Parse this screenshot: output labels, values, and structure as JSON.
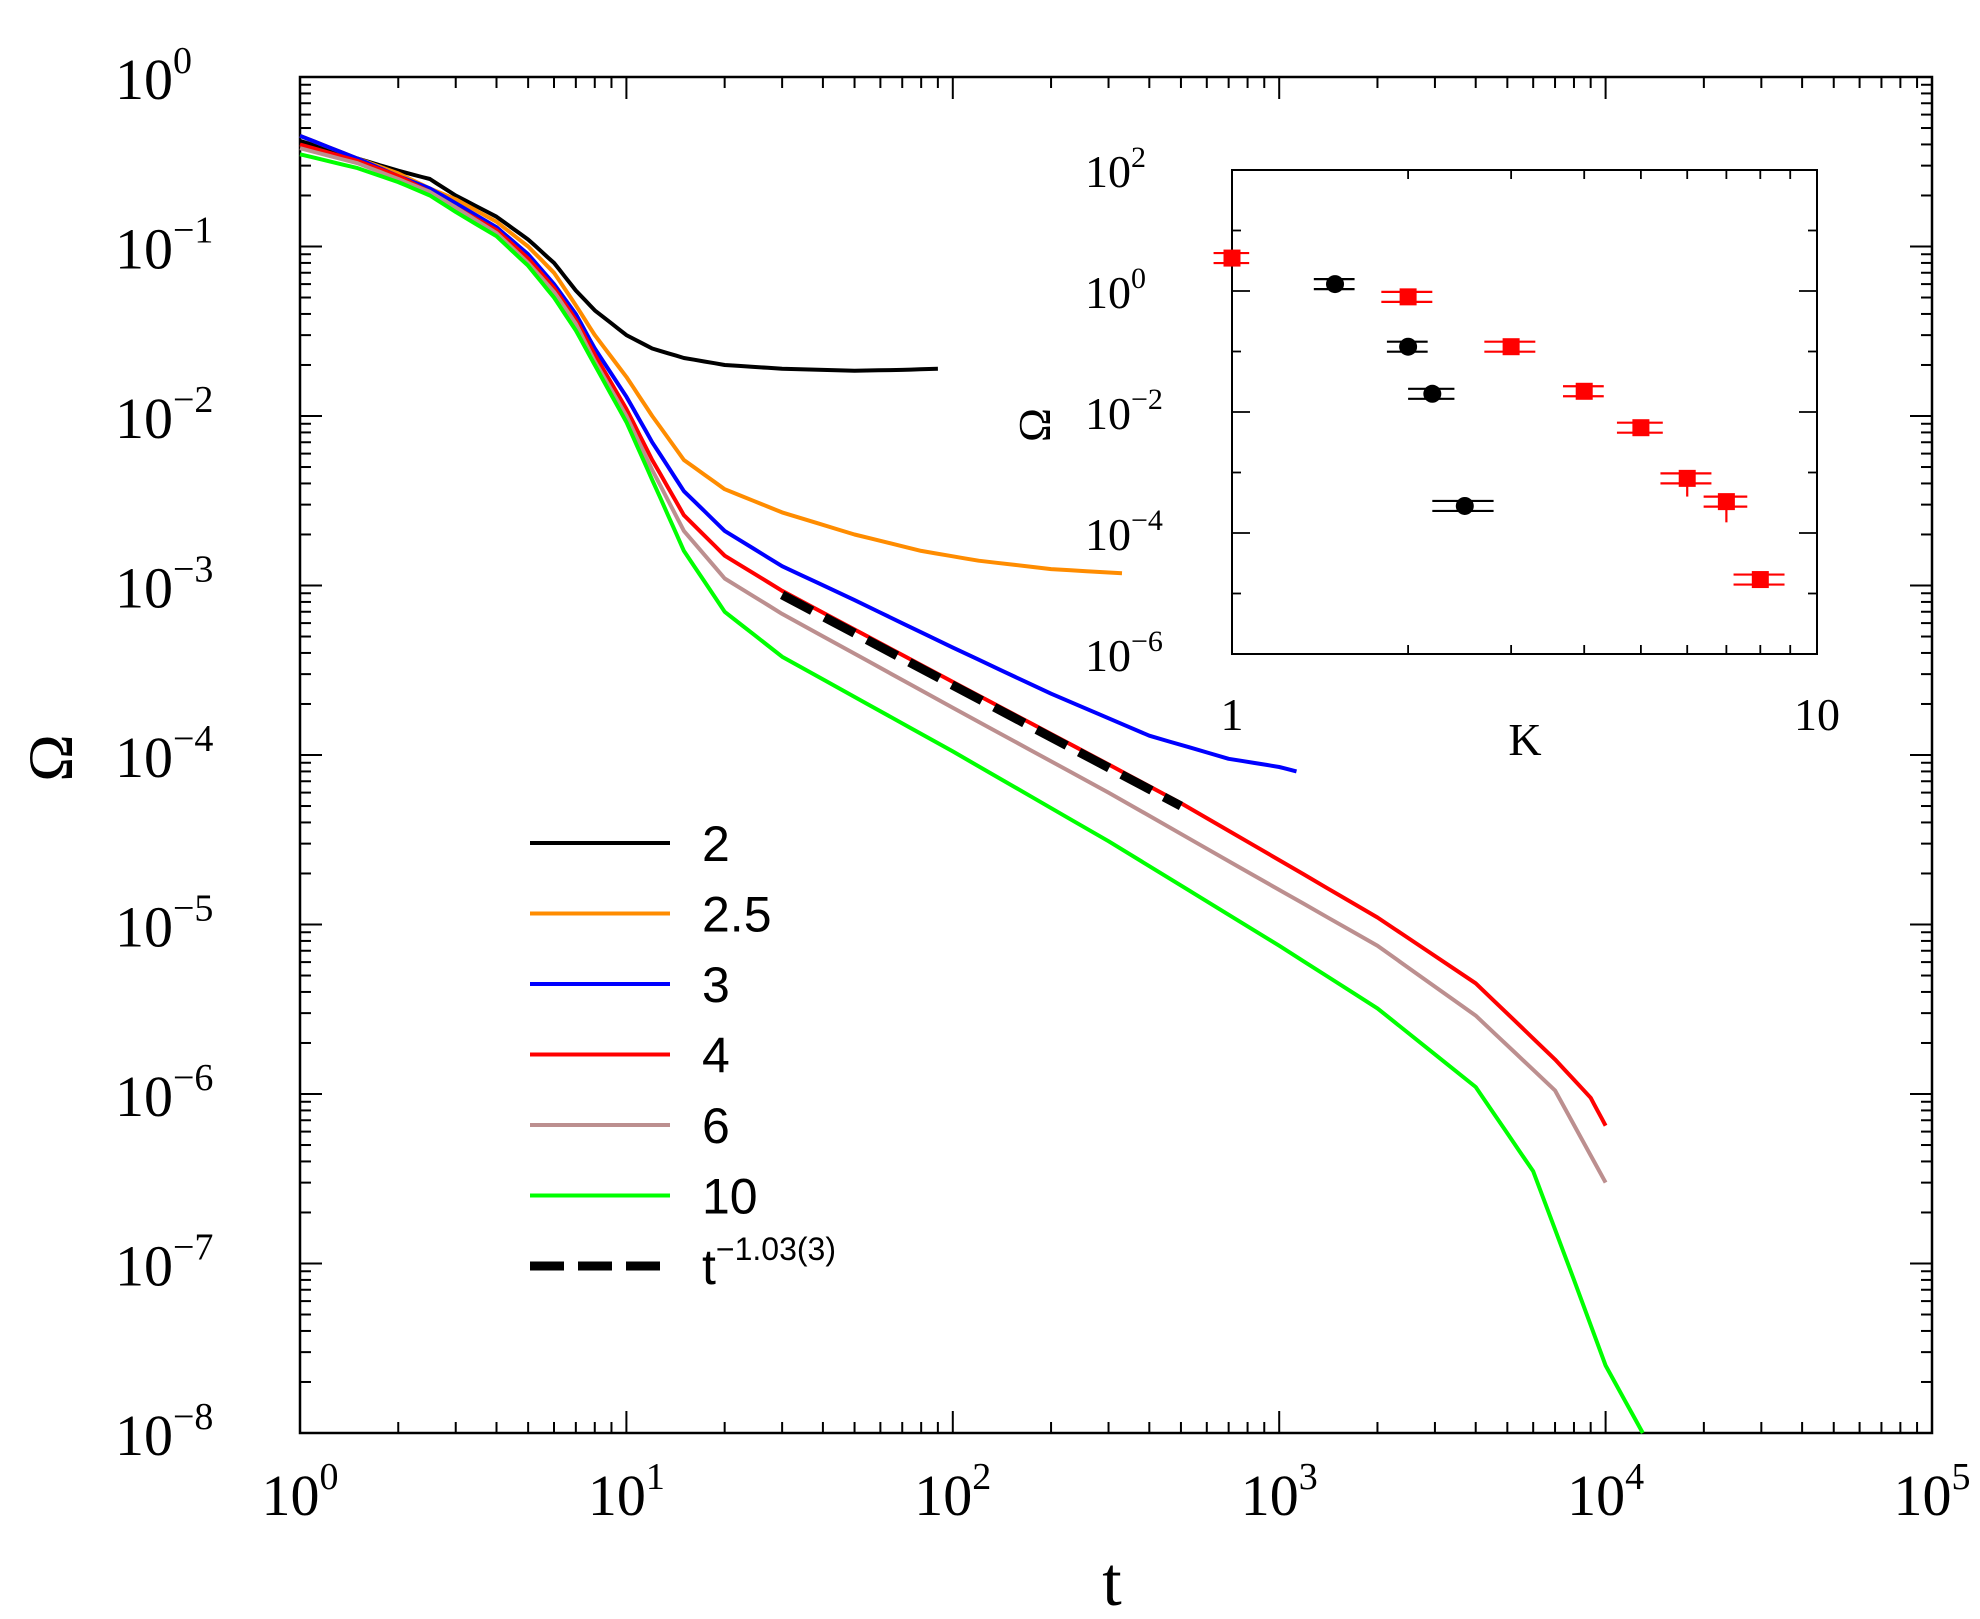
{
  "chart_data": {
    "main": {
      "type": "line",
      "xlabel": "t",
      "ylabel": "Ω",
      "xscale": "log",
      "yscale": "log",
      "xlim": [
        1,
        100000
      ],
      "ylim": [
        1e-08,
        1
      ],
      "x_ticks": [
        {
          "value": 1,
          "base": "10",
          "exp": "0"
        },
        {
          "value": 10,
          "base": "10",
          "exp": "1"
        },
        {
          "value": 100,
          "base": "10",
          "exp": "2"
        },
        {
          "value": 1000,
          "base": "10",
          "exp": "3"
        },
        {
          "value": 10000,
          "base": "10",
          "exp": "4"
        },
        {
          "value": 100000,
          "base": "10",
          "exp": "5"
        }
      ],
      "y_ticks": [
        {
          "value": 1,
          "base": "10",
          "exp": "0"
        },
        {
          "value": 0.1,
          "base": "10",
          "exp": "−1"
        },
        {
          "value": 0.01,
          "base": "10",
          "exp": "−2"
        },
        {
          "value": 0.001,
          "base": "10",
          "exp": "−3"
        },
        {
          "value": 0.0001,
          "base": "10",
          "exp": "−4"
        },
        {
          "value": 1e-05,
          "base": "10",
          "exp": "−5"
        },
        {
          "value": 1e-06,
          "base": "10",
          "exp": "−6"
        },
        {
          "value": 1e-07,
          "base": "10",
          "exp": "−7"
        },
        {
          "value": 1e-08,
          "base": "10",
          "exp": "−8"
        }
      ],
      "legend_position": "lower-left",
      "series": [
        {
          "name": "2",
          "color": "#000000",
          "points": [
            [
              1,
              0.42
            ],
            [
              1.5,
              0.33
            ],
            [
              2,
              0.28
            ],
            [
              2.5,
              0.25
            ],
            [
              3,
              0.2
            ],
            [
              4,
              0.15
            ],
            [
              5,
              0.11
            ],
            [
              6,
              0.08
            ],
            [
              7,
              0.055
            ],
            [
              8,
              0.042
            ],
            [
              10,
              0.03
            ],
            [
              12,
              0.025
            ],
            [
              15,
              0.022
            ],
            [
              20,
              0.02
            ],
            [
              30,
              0.019
            ],
            [
              50,
              0.0185
            ],
            [
              70,
              0.0187
            ],
            [
              90,
              0.019
            ]
          ]
        },
        {
          "name": "2.5",
          "color": "#ff8c00",
          "points": [
            [
              1,
              0.45
            ],
            [
              1.5,
              0.33
            ],
            [
              2,
              0.27
            ],
            [
              2.5,
              0.22
            ],
            [
              3,
              0.19
            ],
            [
              4,
              0.14
            ],
            [
              5,
              0.1
            ],
            [
              6,
              0.07
            ],
            [
              7,
              0.045
            ],
            [
              8,
              0.03
            ],
            [
              10,
              0.017
            ],
            [
              12,
              0.01
            ],
            [
              15,
              0.0055
            ],
            [
              20,
              0.0037
            ],
            [
              30,
              0.0027
            ],
            [
              50,
              0.002
            ],
            [
              80,
              0.0016
            ],
            [
              120,
              0.0014
            ],
            [
              200,
              0.00125
            ],
            [
              330,
              0.00118
            ]
          ]
        },
        {
          "name": "3",
          "color": "#0000ff",
          "points": [
            [
              1,
              0.45
            ],
            [
              1.5,
              0.33
            ],
            [
              2,
              0.26
            ],
            [
              2.5,
              0.22
            ],
            [
              3,
              0.18
            ],
            [
              4,
              0.13
            ],
            [
              5,
              0.09
            ],
            [
              6,
              0.06
            ],
            [
              7,
              0.04
            ],
            [
              8,
              0.025
            ],
            [
              10,
              0.013
            ],
            [
              12,
              0.007
            ],
            [
              15,
              0.0036
            ],
            [
              20,
              0.0021
            ],
            [
              30,
              0.0013
            ],
            [
              50,
              0.00082
            ],
            [
              100,
              0.00043
            ],
            [
              200,
              0.00023
            ],
            [
              400,
              0.00013
            ],
            [
              700,
              9.5e-05
            ],
            [
              1000,
              8.5e-05
            ],
            [
              1130,
              8e-05
            ]
          ]
        },
        {
          "name": "4",
          "color": "#ff0000",
          "points": [
            [
              1,
              0.4
            ],
            [
              1.5,
              0.32
            ],
            [
              2,
              0.26
            ],
            [
              2.5,
              0.21
            ],
            [
              3,
              0.17
            ],
            [
              4,
              0.125
            ],
            [
              5,
              0.085
            ],
            [
              6,
              0.057
            ],
            [
              7,
              0.037
            ],
            [
              8,
              0.023
            ],
            [
              10,
              0.011
            ],
            [
              12,
              0.0055
            ],
            [
              15,
              0.0026
            ],
            [
              20,
              0.0015
            ],
            [
              30,
              0.00093
            ],
            [
              100,
              0.00027
            ],
            [
              300,
              8.8e-05
            ],
            [
              500,
              5.2e-05
            ],
            [
              1000,
              2.4e-05
            ],
            [
              2000,
              1.1e-05
            ],
            [
              4000,
              4.5e-06
            ],
            [
              7000,
              1.6e-06
            ],
            [
              9000,
              9.5e-07
            ],
            [
              10000,
              6.5e-07
            ]
          ]
        },
        {
          "name": "6",
          "color": "#bc8f8f",
          "points": [
            [
              1,
              0.38
            ],
            [
              1.5,
              0.31
            ],
            [
              2,
              0.25
            ],
            [
              2.5,
              0.21
            ],
            [
              3,
              0.17
            ],
            [
              4,
              0.12
            ],
            [
              5,
              0.08
            ],
            [
              6,
              0.054
            ],
            [
              7,
              0.035
            ],
            [
              8,
              0.021
            ],
            [
              10,
              0.01
            ],
            [
              12,
              0.0048
            ],
            [
              15,
              0.0021
            ],
            [
              20,
              0.0011
            ],
            [
              30,
              0.00068
            ],
            [
              100,
              0.00019
            ],
            [
              300,
              6e-05
            ],
            [
              1000,
              1.6e-05
            ],
            [
              2000,
              7.5e-06
            ],
            [
              4000,
              2.9e-06
            ],
            [
              7000,
              1.05e-06
            ],
            [
              10000,
              3e-07
            ]
          ]
        },
        {
          "name": "10",
          "color": "#00ff00",
          "points": [
            [
              1,
              0.35
            ],
            [
              1.5,
              0.29
            ],
            [
              2,
              0.24
            ],
            [
              2.5,
              0.2
            ],
            [
              3,
              0.16
            ],
            [
              4,
              0.115
            ],
            [
              5,
              0.077
            ],
            [
              6,
              0.05
            ],
            [
              7,
              0.032
            ],
            [
              8,
              0.02
            ],
            [
              10,
              0.0092
            ],
            [
              12,
              0.0042
            ],
            [
              15,
              0.0016
            ],
            [
              20,
              0.0007
            ],
            [
              30,
              0.00038
            ],
            [
              100,
              0.000105
            ],
            [
              300,
              3.1e-05
            ],
            [
              1000,
              7.5e-06
            ],
            [
              2000,
              3.2e-06
            ],
            [
              4000,
              1.1e-06
            ],
            [
              6000,
              3.5e-07
            ],
            [
              8000,
              8e-08
            ],
            [
              10000,
              2.5e-08
            ],
            [
              13000,
              1e-08
            ]
          ]
        },
        {
          "name": "t^-1.03(3)",
          "color": "#000000",
          "dashed": true,
          "points": [
            [
              30,
              0.00088
            ],
            [
              500,
              5e-05
            ]
          ]
        }
      ],
      "legend": [
        {
          "label": "2",
          "color": "#000000",
          "dashed": false
        },
        {
          "label": "2.5",
          "color": "#ff8c00",
          "dashed": false
        },
        {
          "label": "3",
          "color": "#0000ff",
          "dashed": false
        },
        {
          "label": "4",
          "color": "#ff0000",
          "dashed": false
        },
        {
          "label": "6",
          "color": "#bc8f8f",
          "dashed": false
        },
        {
          "label": "10",
          "color": "#00ff00",
          "dashed": false
        },
        {
          "label": "t",
          "sup": "−1.03(3)",
          "color": "#000000",
          "dashed": true
        }
      ]
    },
    "inset": {
      "type": "scatter",
      "xlabel": "K",
      "ylabel": "Ω",
      "xscale": "log",
      "yscale": "log",
      "xlim": [
        1,
        10
      ],
      "ylim": [
        1e-06,
        100
      ],
      "x_ticks": [
        {
          "value": 1,
          "label": "1"
        },
        {
          "value": 10,
          "label": "10"
        }
      ],
      "y_ticks": [
        {
          "value": 100,
          "base": "10",
          "exp": "2"
        },
        {
          "value": 1,
          "base": "10",
          "exp": "0"
        },
        {
          "value": 0.01,
          "base": "10",
          "exp": "−2"
        },
        {
          "value": 0.0001,
          "base": "10",
          "exp": "−4"
        },
        {
          "value": 1e-06,
          "base": "10",
          "exp": "−6"
        }
      ],
      "series": [
        {
          "name": "circles",
          "marker": "circle",
          "color": "#000000",
          "points": [
            {
              "x": 1.5,
              "y": 1.3,
              "xerr": 0.12
            },
            {
              "x": 2.0,
              "y": 0.12,
              "xerr": 0.16
            },
            {
              "x": 2.2,
              "y": 0.02,
              "xerr": 0.2
            },
            {
              "x": 2.5,
              "y": 0.00028,
              "xerr": 0.3
            }
          ]
        },
        {
          "name": "squares",
          "marker": "square",
          "color": "#ff0000",
          "points": [
            {
              "x": 1.0,
              "y": 3.5,
              "xerr": 0.07
            },
            {
              "x": 2.0,
              "y": 0.8,
              "xerr": 0.2
            },
            {
              "x": 3.0,
              "y": 0.12,
              "xerr": 0.3
            },
            {
              "x": 4.0,
              "y": 0.022,
              "xerr": 0.32
            },
            {
              "x": 5.0,
              "y": 0.0055,
              "xerr": 0.45
            },
            {
              "x": 6.0,
              "y": 0.0008,
              "xerr": 0.6,
              "yerr_low": 0.0004
            },
            {
              "x": 7.0,
              "y": 0.00033,
              "xerr": 0.6,
              "yerr_low": 0.00018
            },
            {
              "x": 8.0,
              "y": 1.7e-05,
              "xerr": 0.8
            }
          ]
        }
      ]
    }
  }
}
